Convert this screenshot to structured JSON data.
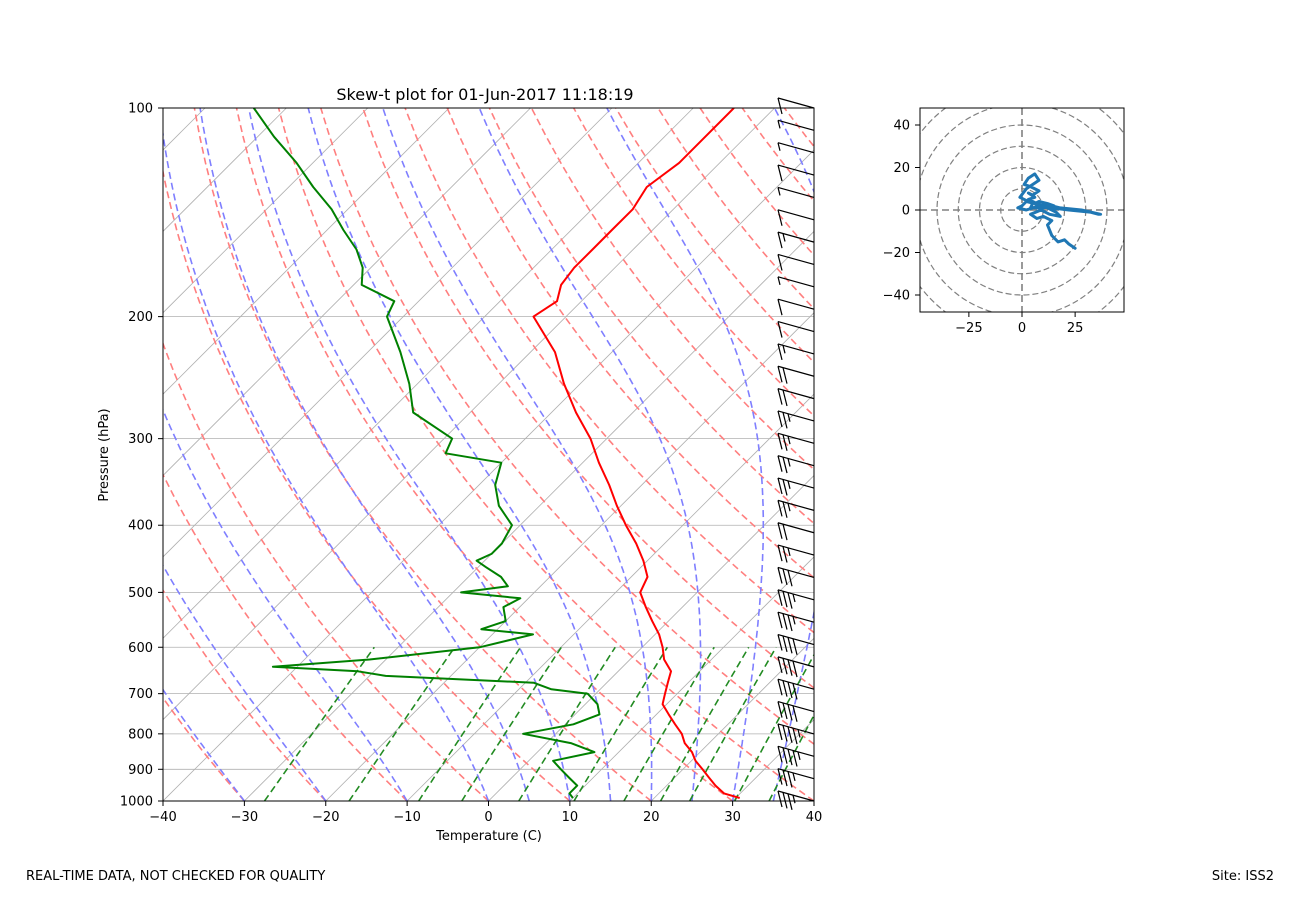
{
  "footer": {
    "left_text": "REAL-TIME DATA, NOT CHECKED FOR QUALITY",
    "right_text": "Site: ISS2"
  },
  "colors": {
    "temperature": "#ff0000",
    "dewpoint": "#008000",
    "dry_adiabat": "#ff7f7f",
    "moist_adiabat": "#7f7fff",
    "mixing_ratio": "#228b22",
    "isotherm": "#b0b0b0",
    "hodograph": "#1f77b4",
    "wind_barb": "#000000"
  },
  "chart_data": [
    {
      "type": "line",
      "title": "Skew-t plot for 01-Jun-2017 11:18:19",
      "xlabel": "Temperature (C)",
      "ylabel": "Pressure (hPa)",
      "xlim": [
        -40,
        40
      ],
      "ylim": [
        1000,
        100
      ],
      "y_scale": "log",
      "grid": true,
      "x_ticks": [
        -40,
        -30,
        -20,
        -10,
        0,
        10,
        20,
        30,
        40
      ],
      "x_tick_labels": [
        "−40",
        "−30",
        "−20",
        "−10",
        "0",
        "10",
        "20",
        "30",
        "40"
      ],
      "y_ticks": [
        1000,
        900,
        800,
        700,
        600,
        500,
        400,
        300,
        200,
        100
      ],
      "y_tick_labels": [
        "1000",
        "900",
        "800",
        "700",
        "600",
        "500",
        "400",
        "300",
        "200",
        "100"
      ],
      "series": [
        {
          "role": "temperature",
          "pressure": [
            990,
            975,
            950,
            925,
            900,
            875,
            850,
            825,
            800,
            775,
            750,
            725,
            700,
            675,
            650,
            625,
            600,
            575,
            550,
            525,
            500,
            475,
            450,
            425,
            400,
            375,
            350,
            325,
            300,
            275,
            250,
            225,
            200,
            190,
            180,
            170,
            160,
            150,
            140,
            130,
            120,
            110,
            100
          ],
          "temperature": [
            30.5,
            28,
            26,
            24.2,
            22.4,
            20.5,
            19,
            17,
            15.5,
            13.5,
            11.5,
            9.5,
            8.5,
            7.5,
            6.5,
            4.2,
            2.5,
            0.5,
            -2,
            -4.5,
            -7,
            -8,
            -10.5,
            -13.5,
            -17,
            -20.5,
            -24,
            -28,
            -32,
            -37,
            -42,
            -47,
            -54,
            -53,
            -54.5,
            -55,
            -55,
            -55,
            -55,
            -56,
            -55,
            -55,
            -55
          ]
        },
        {
          "role": "dewpoint",
          "pressure": [
            990,
            975,
            950,
            925,
            900,
            875,
            850,
            825,
            800,
            775,
            750,
            725,
            700,
            690,
            675,
            660,
            650,
            640,
            625,
            600,
            575,
            565,
            550,
            525,
            510,
            500,
            490,
            475,
            460,
            450,
            440,
            425,
            400,
            375,
            350,
            325,
            315,
            300,
            275,
            250,
            225,
            200,
            190,
            180,
            170,
            160,
            150,
            140,
            130,
            120,
            110,
            100
          ],
          "dewpoint": [
            10,
            9,
            9,
            7,
            5,
            3,
            7,
            3,
            -4,
            1,
            3,
            1.5,
            -1,
            -6,
            -9,
            -28,
            -32,
            -43,
            -32,
            -20,
            -15,
            -22,
            -20,
            -22,
            -21,
            -29,
            -24,
            -26,
            -29,
            -31,
            -30,
            -30,
            -31,
            -35,
            -38,
            -40,
            -48,
            -49,
            -57,
            -61,
            -66,
            -72,
            -73,
            -79,
            -81,
            -84,
            -88,
            -92,
            -97,
            -102,
            -108,
            -114
          ]
        }
      ],
      "wind_barbs": {
        "count": 32,
        "speeds_kt": [
          10,
          5,
          5,
          10,
          5,
          10,
          15,
          10,
          5,
          10,
          10,
          15,
          20,
          20,
          25,
          25,
          25,
          25,
          25,
          20,
          25,
          30,
          35,
          35,
          40,
          40,
          40,
          40,
          45,
          45,
          35,
          35
        ]
      }
    },
    {
      "type": "line",
      "title": "",
      "xlim": [
        -48,
        48
      ],
      "ylim": [
        -48,
        48
      ],
      "x_ticks": [
        -25,
        0,
        25
      ],
      "x_tick_labels": [
        "−25",
        "0",
        "25"
      ],
      "y_ticks": [
        -40,
        -20,
        0,
        20,
        40
      ],
      "y_tick_labels": [
        "−40",
        "−20",
        "0",
        "20",
        "40"
      ],
      "rings": [
        10,
        20,
        30,
        40,
        50,
        60
      ],
      "grid": true,
      "series": [
        {
          "role": "hodograph",
          "u": [
            25,
            22,
            20,
            17,
            14,
            12,
            14,
            10,
            7,
            4,
            9,
            13,
            18,
            16,
            12,
            7,
            3,
            6,
            3,
            5,
            8,
            4,
            1,
            3,
            6,
            8,
            2,
            -1,
            5,
            4,
            14,
            18,
            28,
            37,
            36,
            32,
            22,
            14,
            10,
            6,
            8,
            12,
            15,
            10,
            6,
            2,
            0,
            -2,
            2,
            5,
            8,
            12,
            10,
            5
          ],
          "v": [
            -18,
            -16,
            -14,
            -15,
            -12,
            -7,
            -5,
            -3,
            -4,
            -2,
            0,
            -2,
            -3,
            -1,
            1,
            3,
            5,
            6,
            8,
            7,
            9,
            11,
            12,
            15,
            17,
            14,
            10,
            6,
            3,
            1,
            2,
            1,
            0,
            -2,
            -2,
            -1,
            0,
            1,
            2,
            3,
            4,
            3,
            2,
            1,
            3,
            4,
            2,
            1,
            0,
            1,
            2,
            3,
            1,
            1
          ]
        }
      ]
    }
  ]
}
